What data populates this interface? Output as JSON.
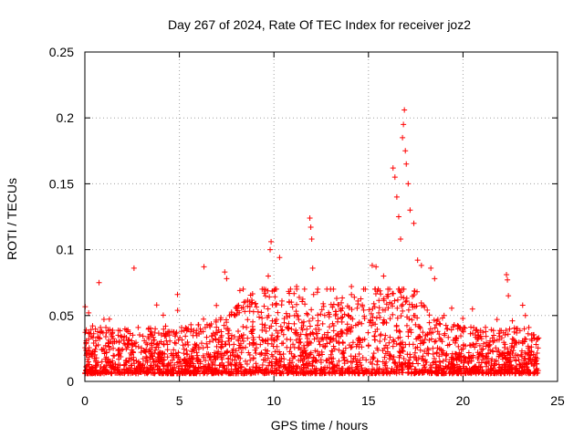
{
  "chart_data": {
    "type": "scatter",
    "title": "Day 267 of 2024, Rate Of TEC Index for receiver joz2",
    "xlabel": "GPS time / hours",
    "ylabel": "ROTI / TECUs",
    "xlim": [
      0,
      25
    ],
    "ylim": [
      0,
      0.25
    ],
    "x_ticks": [
      "0",
      "5",
      "10",
      "15",
      "20",
      "25"
    ],
    "y_ticks": [
      "0",
      "0.05",
      "0.1",
      "0.15",
      "0.2",
      "0.25"
    ],
    "grid": true,
    "marker": "+",
    "color": "#ff0000",
    "series": [
      {
        "name": "ROTI",
        "note": "dense background of ~0.005-0.045 TECU/s over 0-24 h; listed points are visible outliers",
        "points": [
          [
            0.2,
            0.052
          ],
          [
            0.75,
            0.075
          ],
          [
            2.6,
            0.086
          ],
          [
            3.8,
            0.058
          ],
          [
            4.9,
            0.066
          ],
          [
            6.3,
            0.087
          ],
          [
            7.4,
            0.083
          ],
          [
            7.5,
            0.078
          ],
          [
            8.2,
            0.069
          ],
          [
            9.5,
            0.067
          ],
          [
            9.7,
            0.08
          ],
          [
            9.8,
            0.1
          ],
          [
            9.85,
            0.106
          ],
          [
            10.3,
            0.094
          ],
          [
            11.2,
            0.072
          ],
          [
            11.9,
            0.124
          ],
          [
            11.95,
            0.117
          ],
          [
            12.0,
            0.108
          ],
          [
            12.05,
            0.086
          ],
          [
            12.1,
            0.066
          ],
          [
            12.8,
            0.07
          ],
          [
            14.1,
            0.072
          ],
          [
            15.2,
            0.088
          ],
          [
            15.4,
            0.087
          ],
          [
            15.8,
            0.08
          ],
          [
            16.3,
            0.162
          ],
          [
            16.4,
            0.155
          ],
          [
            16.5,
            0.14
          ],
          [
            16.6,
            0.125
          ],
          [
            16.7,
            0.108
          ],
          [
            16.8,
            0.185
          ],
          [
            16.85,
            0.195
          ],
          [
            16.9,
            0.206
          ],
          [
            16.95,
            0.175
          ],
          [
            17.0,
            0.165
          ],
          [
            17.1,
            0.15
          ],
          [
            17.2,
            0.13
          ],
          [
            17.4,
            0.12
          ],
          [
            17.6,
            0.092
          ],
          [
            17.8,
            0.088
          ],
          [
            18.3,
            0.086
          ],
          [
            18.5,
            0.078
          ],
          [
            19.0,
            0.05
          ],
          [
            20.5,
            0.055
          ],
          [
            21.8,
            0.047
          ],
          [
            22.3,
            0.081
          ],
          [
            22.35,
            0.077
          ],
          [
            22.4,
            0.065
          ],
          [
            23.3,
            0.05
          ],
          [
            23.9,
            0.032
          ]
        ]
      }
    ]
  }
}
